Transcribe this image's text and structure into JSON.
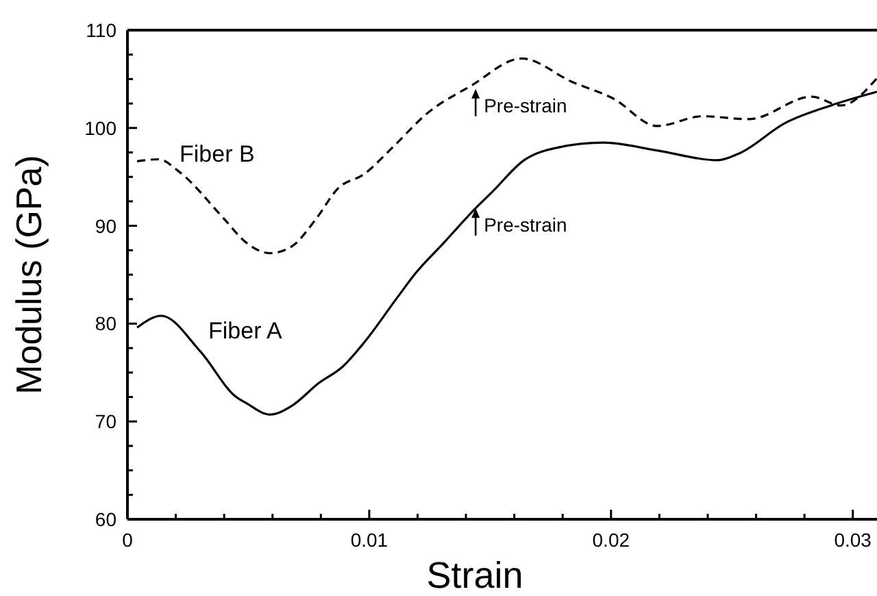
{
  "chart_data": {
    "type": "line",
    "xlabel": "Strain",
    "ylabel": "Modulus (GPa)",
    "xlim": [
      0,
      0.031
    ],
    "ylim": [
      60,
      110
    ],
    "xticks": [
      0,
      {
        "value": 0.002,
        "label": null
      },
      {
        "value": 0.004,
        "label": null
      },
      {
        "value": 0.006,
        "label": null
      },
      {
        "value": 0.008,
        "label": null
      },
      0.01,
      {
        "value": 0.012,
        "label": null
      },
      {
        "value": 0.014,
        "label": null
      },
      {
        "value": 0.016,
        "label": null
      },
      {
        "value": 0.018,
        "label": null
      },
      0.02,
      {
        "value": 0.022,
        "label": null
      },
      {
        "value": 0.024,
        "label": null
      },
      {
        "value": 0.026,
        "label": null
      },
      {
        "value": 0.028,
        "label": null
      },
      0.03
    ],
    "yticks": [
      60,
      {
        "value": 62.5,
        "label": null
      },
      {
        "value": 65,
        "label": null
      },
      {
        "value": 67.5,
        "label": null
      },
      70,
      {
        "value": 72.5,
        "label": null
      },
      {
        "value": 75,
        "label": null
      },
      {
        "value": 77.5,
        "label": null
      },
      80,
      {
        "value": 82.5,
        "label": null
      },
      {
        "value": 85,
        "label": null
      },
      {
        "value": 87.5,
        "label": null
      },
      90,
      {
        "value": 92.5,
        "label": null
      },
      {
        "value": 95,
        "label": null
      },
      {
        "value": 97.5,
        "label": null
      },
      100,
      {
        "value": 102.5,
        "label": null
      },
      {
        "value": 105,
        "label": null
      },
      {
        "value": 107.5,
        "label": null
      },
      110
    ],
    "legend": false,
    "grid": false,
    "marker": "none",
    "series": [
      {
        "name": "Fiber A",
        "color": "#000000",
        "line_style": "solid",
        "x": [
          0.0004,
          0.0014,
          0.003,
          0.0045,
          0.0049,
          0.0059,
          0.0068,
          0.0079,
          0.0089,
          0.0098,
          0.0112,
          0.0119,
          0.0131,
          0.0144,
          0.0151,
          0.0164,
          0.0178,
          0.0197,
          0.0219,
          0.0244,
          0.0253,
          0.0272,
          0.0291,
          0.031
        ],
        "values": [
          79.6,
          80.8,
          77.2,
          72.5,
          71.9,
          70.7,
          71.6,
          73.9,
          75.6,
          78.1,
          82.8,
          85.1,
          88.3,
          91.8,
          93.5,
          96.7,
          98.0,
          98.5,
          97.7,
          96.7,
          97.4,
          100.5,
          102.3,
          103.7
        ]
      },
      {
        "name": "Fiber B",
        "color": "#000000",
        "line_style": "dashed",
        "x": [
          0.0004,
          0.0013,
          0.0021,
          0.004,
          0.0049,
          0.0059,
          0.0068,
          0.0078,
          0.0087,
          0.0098,
          0.011,
          0.0124,
          0.0142,
          0.0163,
          0.0184,
          0.0201,
          0.0219,
          0.0238,
          0.0257,
          0.0283,
          0.0295,
          0.031
        ],
        "values": [
          96.6,
          96.8,
          95.6,
          90.7,
          88.3,
          87.2,
          87.9,
          90.7,
          93.8,
          95.3,
          98.1,
          101.5,
          104.3,
          107.1,
          104.7,
          103.0,
          100.2,
          101.2,
          100.9,
          103.2,
          102.3,
          105.1
        ]
      }
    ],
    "annotations": [
      {
        "text": "Pre-strain",
        "x": 0.0144,
        "y": 104
      },
      {
        "text": "Pre-strain",
        "x": 0.0144,
        "y": 91.8
      }
    ]
  }
}
